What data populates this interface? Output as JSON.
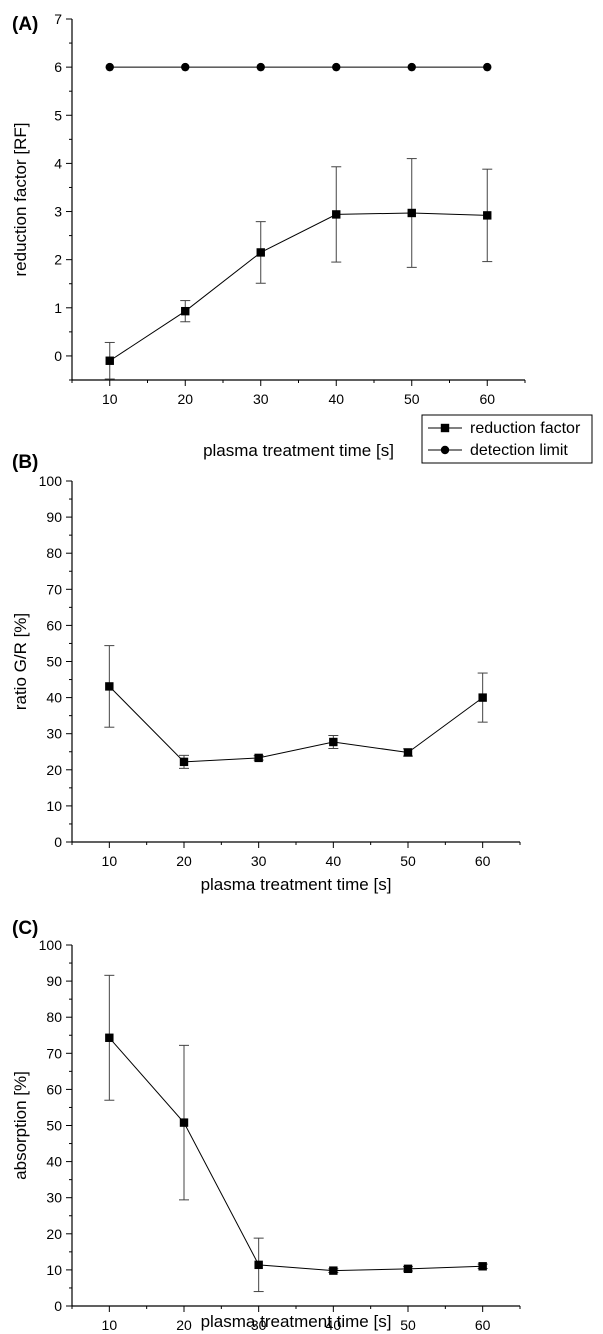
{
  "chart_data": [
    {
      "panel_label": "(A)",
      "type": "line",
      "xlabel": "plasma treatment time [s]",
      "ylabel": "reduction factor [RF]",
      "x": [
        10,
        20,
        30,
        40,
        50,
        60
      ],
      "xlim": [
        5,
        65
      ],
      "ylim": [
        -0.5,
        7
      ],
      "xticks": [
        10,
        20,
        30,
        40,
        50,
        60
      ],
      "yticks": [
        0,
        1,
        2,
        3,
        4,
        5,
        6,
        7
      ],
      "series": [
        {
          "name": "reduction factor",
          "marker": "square",
          "values": [
            -0.1,
            0.93,
            2.15,
            2.94,
            2.97,
            2.92
          ],
          "error": [
            0.38,
            0.22,
            0.64,
            0.99,
            1.13,
            0.96
          ]
        },
        {
          "name": "detection limit",
          "marker": "circle",
          "values": [
            6,
            6,
            6,
            6,
            6,
            6
          ]
        }
      ],
      "legend": "bottom-right"
    },
    {
      "panel_label": "(B)",
      "type": "line",
      "xlabel": "plasma treatment time [s]",
      "ylabel": "ratio G/R [%]",
      "x": [
        10,
        20,
        30,
        40,
        50,
        60
      ],
      "xlim": [
        5,
        65
      ],
      "ylim": [
        0,
        100
      ],
      "xticks": [
        10,
        20,
        30,
        40,
        50,
        60
      ],
      "yticks": [
        0,
        10,
        20,
        30,
        40,
        50,
        60,
        70,
        80,
        90,
        100
      ],
      "series": [
        {
          "marker": "square",
          "values": [
            43.1,
            22.2,
            23.3,
            27.7,
            24.8,
            40.0
          ],
          "error": [
            11.3,
            1.8,
            0.6,
            1.8,
            1.0,
            6.8
          ]
        }
      ]
    },
    {
      "panel_label": "(C)",
      "type": "line",
      "xlabel": "plasma treatment time [s]",
      "ylabel": "absorption [%]",
      "x": [
        10,
        20,
        30,
        40,
        50,
        60
      ],
      "xlim": [
        5,
        65
      ],
      "ylim": [
        0,
        100
      ],
      "xticks": [
        10,
        20,
        30,
        40,
        50,
        60
      ],
      "yticks": [
        0,
        10,
        20,
        30,
        40,
        50,
        60,
        70,
        80,
        90,
        100
      ],
      "series": [
        {
          "marker": "square",
          "values": [
            74.3,
            50.8,
            11.4,
            9.8,
            10.3,
            11.0
          ],
          "error": [
            17.3,
            21.4,
            7.4,
            0.5,
            0.6,
            0.6
          ]
        }
      ]
    }
  ],
  "colors": {
    "ink": "#000000",
    "errorbar": "#444444",
    "background": "#ffffff"
  }
}
